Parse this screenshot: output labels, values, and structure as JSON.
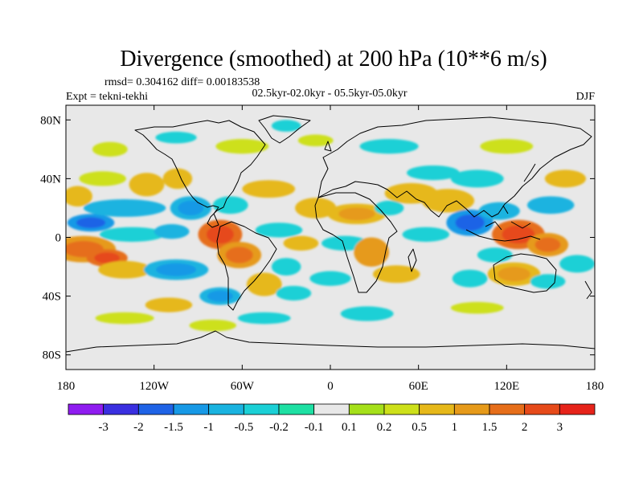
{
  "chart_data": {
    "type": "heatmap",
    "title": "Divergence (smoothed) at 200 hPa (10**6 m/s)",
    "stats_line": "rmsd= 0.304162 diff= 0.00183538",
    "period_label": "02.5kyr-02.0kyr - 05.5kyr-05.0kyr",
    "experiment_label": "Expt = tekni-tekhi",
    "season_label": "DJF",
    "xlim": [
      -180,
      180
    ],
    "ylim": [
      -90,
      90
    ],
    "x_ticks": [
      {
        "value": -180,
        "label": "180"
      },
      {
        "value": -120,
        "label": "120W"
      },
      {
        "value": -60,
        "label": "60W"
      },
      {
        "value": 0,
        "label": "0"
      },
      {
        "value": 60,
        "label": "60E"
      },
      {
        "value": 120,
        "label": "120E"
      },
      {
        "value": 180,
        "label": "180"
      }
    ],
    "y_ticks": [
      {
        "value": 80,
        "label": "80N"
      },
      {
        "value": 40,
        "label": "40N"
      },
      {
        "value": 0,
        "label": "0"
      },
      {
        "value": -40,
        "label": "40S"
      },
      {
        "value": -80,
        "label": "80S"
      }
    ],
    "colorbar": {
      "colors": [
        "#8f1cf0",
        "#3a2fe0",
        "#1f63e6",
        "#1799e6",
        "#1ab3e0",
        "#1bd0d6",
        "#1ee0a3",
        "#e8e8e8",
        "#a5e01a",
        "#cde01a",
        "#e6b81a",
        "#e69a1a",
        "#e66e1a",
        "#e64a1a",
        "#e6231a"
      ],
      "labels": [
        "-3",
        "-2",
        "-1.5",
        "-1",
        "-0.5",
        "-0.2",
        "-0.1",
        "0.1",
        "0.2",
        "0.5",
        "1",
        "1.5",
        "2",
        "3"
      ]
    },
    "field_blobs": [
      {
        "lon": -168,
        "lat": -8,
        "rlon": 22,
        "rlat": 9,
        "value": 1.2
      },
      {
        "lon": -152,
        "lat": -14,
        "rlon": 14,
        "rlat": 6,
        "value": 1.6
      },
      {
        "lon": -140,
        "lat": -22,
        "rlon": 18,
        "rlat": 6,
        "value": 0.6
      },
      {
        "lon": -163,
        "lat": 10,
        "rlon": 16,
        "rlat": 6,
        "value": -1.2
      },
      {
        "lon": -135,
        "lat": 2,
        "rlon": 22,
        "rlat": 5,
        "value": -0.4
      },
      {
        "lon": -140,
        "lat": 20,
        "rlon": 28,
        "rlat": 6,
        "value": -0.6
      },
      {
        "lon": -172,
        "lat": 28,
        "rlon": 10,
        "rlat": 7,
        "value": 0.6
      },
      {
        "lon": -155,
        "lat": 40,
        "rlon": 16,
        "rlat": 5,
        "value": 0.4
      },
      {
        "lon": -125,
        "lat": 36,
        "rlon": 12,
        "rlat": 8,
        "value": 0.6
      },
      {
        "lon": -104,
        "lat": 40,
        "rlon": 10,
        "rlat": 7,
        "value": 0.5
      },
      {
        "lon": -95,
        "lat": 20,
        "rlon": 14,
        "rlat": 8,
        "value": -0.8
      },
      {
        "lon": -108,
        "lat": 4,
        "rlon": 12,
        "rlat": 5,
        "value": -0.6
      },
      {
        "lon": -75,
        "lat": 2,
        "rlon": 15,
        "rlat": 10,
        "value": 1.6
      },
      {
        "lon": -62,
        "lat": -12,
        "rlon": 15,
        "rlat": 9,
        "value": 1.1
      },
      {
        "lon": -105,
        "lat": -22,
        "rlon": 22,
        "rlat": 7,
        "value": -1.0
      },
      {
        "lon": -75,
        "lat": -40,
        "rlon": 14,
        "rlat": 6,
        "value": -1.0
      },
      {
        "lon": -110,
        "lat": -46,
        "rlon": 16,
        "rlat": 5,
        "value": 0.5
      },
      {
        "lon": -45,
        "lat": -32,
        "rlon": 12,
        "rlat": 8,
        "value": 0.6
      },
      {
        "lon": -30,
        "lat": -20,
        "rlon": 10,
        "rlat": 6,
        "value": -0.5
      },
      {
        "lon": -25,
        "lat": -38,
        "rlon": 12,
        "rlat": 5,
        "value": -0.4
      },
      {
        "lon": -68,
        "lat": 22,
        "rlon": 12,
        "rlat": 6,
        "value": -0.5
      },
      {
        "lon": -42,
        "lat": 33,
        "rlon": 18,
        "rlat": 6,
        "value": 0.6
      },
      {
        "lon": -35,
        "lat": 5,
        "rlon": 16,
        "rlat": 5,
        "value": -0.4
      },
      {
        "lon": -20,
        "lat": -4,
        "rlon": 12,
        "rlat": 5,
        "value": 0.5
      },
      {
        "lon": -10,
        "lat": 20,
        "rlon": 14,
        "rlat": 7,
        "value": 0.6
      },
      {
        "lon": 18,
        "lat": 16,
        "rlon": 20,
        "rlat": 7,
        "value": 0.8
      },
      {
        "lon": 10,
        "lat": -4,
        "rlon": 16,
        "rlat": 5,
        "value": -0.5
      },
      {
        "lon": 28,
        "lat": -10,
        "rlon": 12,
        "rlat": 10,
        "value": 1.0
      },
      {
        "lon": 45,
        "lat": -25,
        "rlon": 16,
        "rlat": 6,
        "value": 0.5
      },
      {
        "lon": 0,
        "lat": -28,
        "rlon": 14,
        "rlat": 5,
        "value": -0.4
      },
      {
        "lon": 25,
        "lat": -52,
        "rlon": 18,
        "rlat": 5,
        "value": -0.4
      },
      {
        "lon": -45,
        "lat": -55,
        "rlon": 18,
        "rlat": 4,
        "value": -0.3
      },
      {
        "lon": -80,
        "lat": -60,
        "rlon": 16,
        "rlat": 4,
        "value": 0.3
      },
      {
        "lon": -140,
        "lat": -55,
        "rlon": 20,
        "rlat": 4,
        "value": 0.3
      },
      {
        "lon": 55,
        "lat": 30,
        "rlon": 18,
        "rlat": 7,
        "value": 0.5
      },
      {
        "lon": 40,
        "lat": 20,
        "rlon": 10,
        "rlat": 5,
        "value": -0.3
      },
      {
        "lon": 80,
        "lat": 25,
        "rlon": 18,
        "rlat": 8,
        "value": 0.7
      },
      {
        "lon": 100,
        "lat": 40,
        "rlon": 18,
        "rlat": 6,
        "value": -0.4
      },
      {
        "lon": 70,
        "lat": 44,
        "rlon": 18,
        "rlat": 5,
        "value": -0.3
      },
      {
        "lon": 95,
        "lat": 10,
        "rlon": 16,
        "rlat": 9,
        "value": -1.1
      },
      {
        "lon": 65,
        "lat": 2,
        "rlon": 16,
        "rlat": 5,
        "value": -0.5
      },
      {
        "lon": 128,
        "lat": 2,
        "rlon": 18,
        "rlat": 10,
        "value": 1.7
      },
      {
        "lon": 148,
        "lat": -5,
        "rlon": 14,
        "rlat": 8,
        "value": 1.1
      },
      {
        "lon": 115,
        "lat": 18,
        "rlon": 14,
        "rlat": 6,
        "value": -0.6
      },
      {
        "lon": 150,
        "lat": 22,
        "rlon": 16,
        "rlat": 6,
        "value": -0.6
      },
      {
        "lon": 160,
        "lat": 40,
        "rlon": 14,
        "rlat": 6,
        "value": 0.5
      },
      {
        "lon": 125,
        "lat": -25,
        "rlon": 18,
        "rlat": 8,
        "value": 0.8
      },
      {
        "lon": 112,
        "lat": -12,
        "rlon": 12,
        "rlat": 5,
        "value": -0.5
      },
      {
        "lon": 95,
        "lat": -28,
        "rlon": 12,
        "rlat": 6,
        "value": -0.5
      },
      {
        "lon": 148,
        "lat": -30,
        "rlon": 12,
        "rlat": 5,
        "value": -0.4
      },
      {
        "lon": 168,
        "lat": -18,
        "rlon": 12,
        "rlat": 6,
        "value": -0.5
      },
      {
        "lon": 100,
        "lat": -48,
        "rlon": 18,
        "rlat": 4,
        "value": 0.3
      },
      {
        "lon": -60,
        "lat": 62,
        "rlon": 18,
        "rlat": 5,
        "value": 0.4
      },
      {
        "lon": -105,
        "lat": 68,
        "rlon": 14,
        "rlat": 4,
        "value": -0.3
      },
      {
        "lon": -10,
        "lat": 66,
        "rlon": 12,
        "rlat": 4,
        "value": 0.3
      },
      {
        "lon": 40,
        "lat": 62,
        "rlon": 20,
        "rlat": 5,
        "value": -0.3
      },
      {
        "lon": 120,
        "lat": 62,
        "rlon": 18,
        "rlat": 5,
        "value": 0.3
      },
      {
        "lon": -150,
        "lat": 60,
        "rlon": 12,
        "rlat": 5,
        "value": 0.3
      },
      {
        "lon": -30,
        "lat": 76,
        "rlon": 10,
        "rlat": 4,
        "value": -0.3
      }
    ]
  }
}
